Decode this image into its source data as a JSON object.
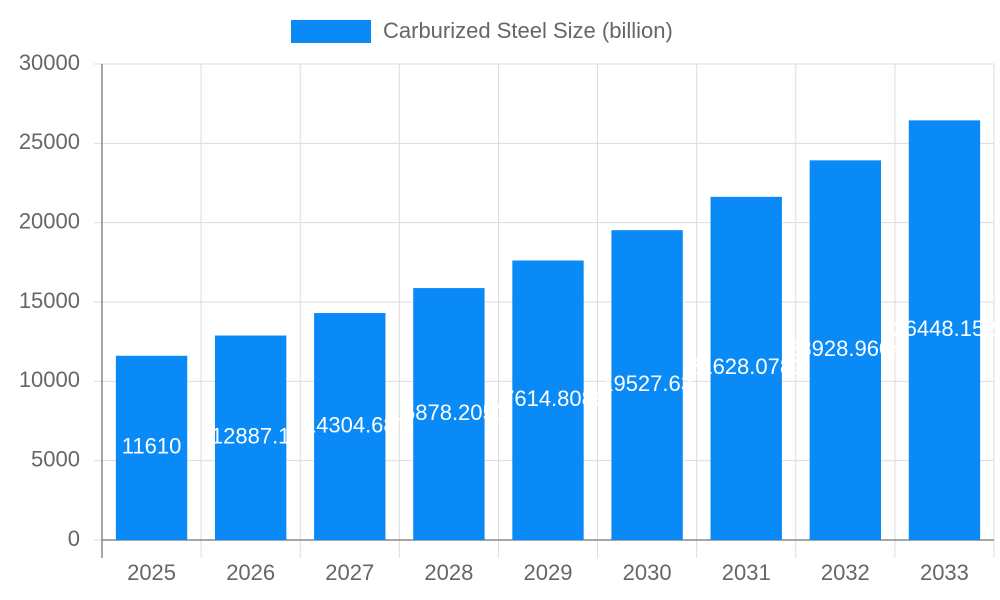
{
  "chart_data": {
    "type": "bar",
    "categories": [
      "2025",
      "2026",
      "2027",
      "2028",
      "2029",
      "2030",
      "2031",
      "2032",
      "2033"
    ],
    "series": [
      {
        "name": "Carburized Steel Size (billion)",
        "color": "#0a8af6",
        "values": [
          11610,
          12887.1,
          14304.68,
          15878.2051,
          17614.8086,
          19527.63,
          21628.0781,
          23928.9604,
          26448.152
        ]
      }
    ],
    "ylim": [
      0,
      30000
    ],
    "yticks": [
      0,
      5000,
      10000,
      15000,
      20000,
      25000,
      30000
    ],
    "grid": true,
    "legend": "top"
  }
}
